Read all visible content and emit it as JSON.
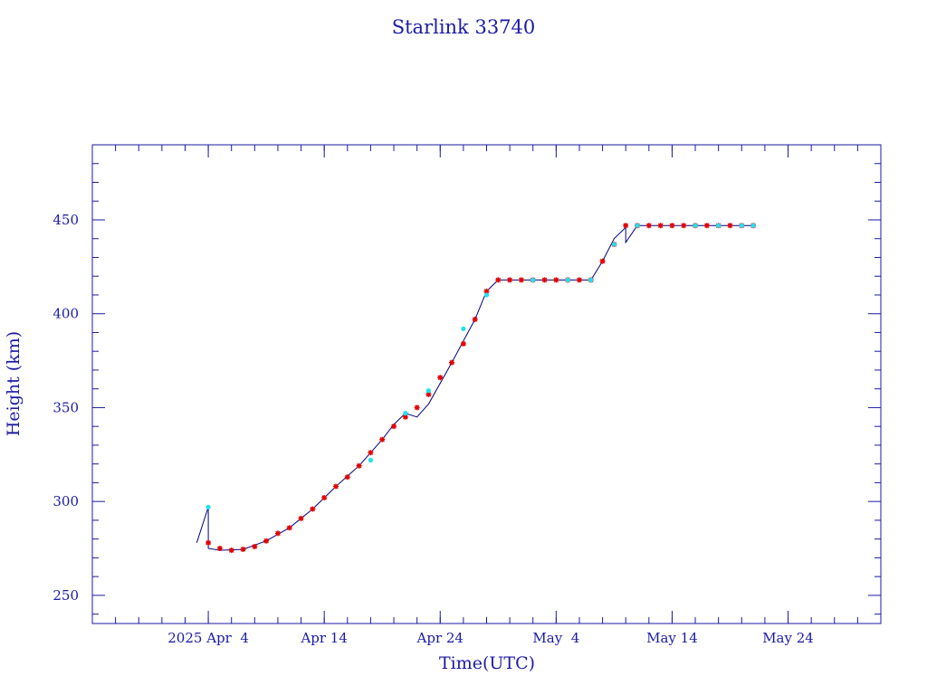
{
  "chart_data": {
    "type": "line",
    "title": "Starlink 33740",
    "xlabel": "Time(UTC)",
    "ylabel": "Height (km)",
    "x_axis_type": "date",
    "xlim": [
      "2025-03-25",
      "2025-06-01"
    ],
    "ylim": [
      235,
      490
    ],
    "x_ticks": [
      {
        "date": "2025-04-04",
        "label": "2025 Apr  4"
      },
      {
        "date": "2025-04-14",
        "label": "Apr 14"
      },
      {
        "date": "2025-04-24",
        "label": "Apr 24"
      },
      {
        "date": "2025-05-04",
        "label": "May  4"
      },
      {
        "date": "2025-05-14",
        "label": "May 14"
      },
      {
        "date": "2025-05-24",
        "label": "May 24"
      }
    ],
    "y_ticks": [
      250,
      300,
      350,
      400,
      450
    ],
    "grid": false,
    "line_color": "#000080",
    "colors": {
      "primary": "#e00000",
      "secondary": "#22e0ee",
      "axis": "#1a1aa6"
    },
    "series": [
      {
        "marker": "star",
        "points": [
          [
            "2025-04-04",
            278
          ],
          [
            "2025-04-05",
            275
          ],
          [
            "2025-04-06",
            274
          ],
          [
            "2025-04-07",
            274.5
          ],
          [
            "2025-04-08",
            276
          ],
          [
            "2025-04-09",
            279
          ],
          [
            "2025-04-10",
            283
          ],
          [
            "2025-04-11",
            286
          ],
          [
            "2025-04-12",
            291
          ],
          [
            "2025-04-13",
            296
          ],
          [
            "2025-04-14",
            302
          ],
          [
            "2025-04-15",
            308
          ],
          [
            "2025-04-16",
            313
          ],
          [
            "2025-04-17",
            319
          ],
          [
            "2025-04-18",
            326
          ],
          [
            "2025-04-19",
            333
          ],
          [
            "2025-04-20",
            340
          ],
          [
            "2025-04-21",
            345
          ],
          [
            "2025-04-22",
            350
          ],
          [
            "2025-04-23",
            357
          ],
          [
            "2025-04-24",
            366
          ],
          [
            "2025-04-25",
            374
          ],
          [
            "2025-04-26",
            384
          ],
          [
            "2025-04-27",
            397
          ],
          [
            "2025-04-28",
            412
          ],
          [
            "2025-04-29",
            418
          ],
          [
            "2025-04-30",
            418
          ],
          [
            "2025-05-01",
            418
          ],
          [
            "2025-05-02",
            418
          ],
          [
            "2025-05-03",
            418
          ],
          [
            "2025-05-04",
            418
          ],
          [
            "2025-05-05",
            418
          ],
          [
            "2025-05-06",
            418
          ],
          [
            "2025-05-07",
            418
          ],
          [
            "2025-05-08",
            428
          ],
          [
            "2025-05-09",
            437
          ],
          [
            "2025-05-10",
            447
          ],
          [
            "2025-05-11",
            447
          ],
          [
            "2025-05-12",
            447
          ],
          [
            "2025-05-13",
            447
          ],
          [
            "2025-05-14",
            447
          ],
          [
            "2025-05-15",
            447
          ],
          [
            "2025-05-16",
            447
          ],
          [
            "2025-05-17",
            447
          ],
          [
            "2025-05-18",
            447
          ],
          [
            "2025-05-19",
            447
          ],
          [
            "2025-05-20",
            447
          ],
          [
            "2025-05-21",
            447
          ]
        ]
      },
      {
        "marker": "dot",
        "points": [
          [
            "2025-04-04",
            297
          ],
          [
            "2025-04-18",
            322
          ],
          [
            "2025-04-21",
            347
          ],
          [
            "2025-04-23",
            359
          ],
          [
            "2025-04-26",
            392
          ],
          [
            "2025-04-28",
            410
          ],
          [
            "2025-05-02",
            418
          ],
          [
            "2025-05-05",
            418
          ],
          [
            "2025-05-07",
            418
          ],
          [
            "2025-05-09",
            437
          ],
          [
            "2025-05-11",
            447
          ],
          [
            "2025-05-16",
            447
          ],
          [
            "2025-05-18",
            447
          ],
          [
            "2025-05-20",
            447
          ],
          [
            "2025-05-21",
            447
          ]
        ]
      }
    ],
    "path": [
      [
        "2025-04-03",
        278
      ],
      [
        "2025-04-04",
        297
      ],
      [
        "2025-04-04",
        275
      ],
      [
        "2025-04-05",
        274
      ],
      [
        "2025-04-07",
        274.5
      ],
      [
        "2025-04-09",
        279
      ],
      [
        "2025-04-11",
        286
      ],
      [
        "2025-04-13",
        296
      ],
      [
        "2025-04-15",
        308
      ],
      [
        "2025-04-17",
        319
      ],
      [
        "2025-04-19",
        333
      ],
      [
        "2025-04-20",
        341
      ],
      [
        "2025-04-21",
        347
      ],
      [
        "2025-04-22",
        345
      ],
      [
        "2025-04-23",
        352
      ],
      [
        "2025-04-25",
        374
      ],
      [
        "2025-04-27",
        397
      ],
      [
        "2025-04-28",
        412
      ],
      [
        "2025-04-29",
        418
      ],
      [
        "2025-05-07",
        418
      ],
      [
        "2025-05-08",
        428
      ],
      [
        "2025-05-09",
        440
      ],
      [
        "2025-05-10",
        446
      ],
      [
        "2025-05-10",
        438
      ],
      [
        "2025-05-11",
        447
      ],
      [
        "2025-05-21",
        447
      ]
    ]
  }
}
